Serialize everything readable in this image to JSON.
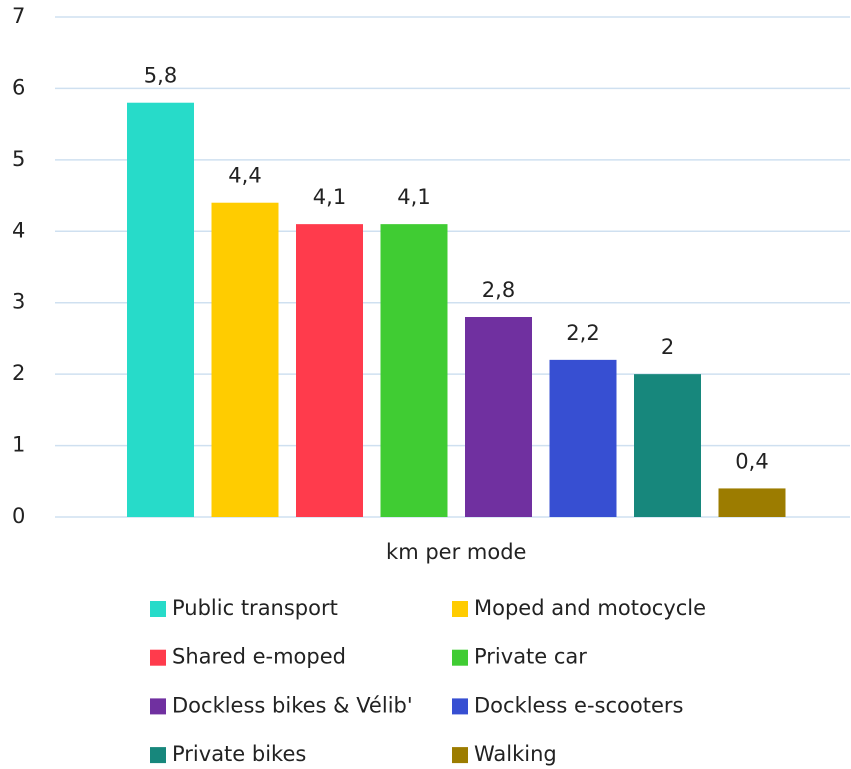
{
  "chart_data": {
    "type": "bar",
    "categories": [
      "km per mode"
    ],
    "series": [
      {
        "name": "Public transport",
        "color": "#27dbc9",
        "values": [
          5.8
        ],
        "value_labels": [
          "5,8"
        ]
      },
      {
        "name": "Moped and motocycle",
        "color": "#ffcc00",
        "values": [
          4.4
        ],
        "value_labels": [
          "4,4"
        ]
      },
      {
        "name": "Shared e-moped",
        "color": "#ff3b4c",
        "values": [
          4.1
        ],
        "value_labels": [
          "4,1"
        ]
      },
      {
        "name": "Private car",
        "color": "#40cc33",
        "values": [
          4.1
        ],
        "value_labels": [
          "4,1"
        ]
      },
      {
        "name": "Dockless bikes & Vélib'",
        "color": "#7030a0",
        "values": [
          2.8
        ],
        "value_labels": [
          "2,8"
        ]
      },
      {
        "name": "Dockless e-scooters",
        "color": "#374fd2",
        "values": [
          2.2
        ],
        "value_labels": [
          "2,2"
        ]
      },
      {
        "name": "Private bikes",
        "color": "#17877c",
        "values": [
          2
        ]
      },
      {
        "name": "Walking",
        "color": "#9c7c00",
        "values": [
          0.4
        ],
        "value_labels": [
          "0,4"
        ]
      }
    ],
    "ylim": [
      0,
      7
    ],
    "yticks": [
      0,
      1,
      2,
      3,
      4,
      5,
      6,
      7
    ],
    "grid": true,
    "legend": "bottom"
  }
}
